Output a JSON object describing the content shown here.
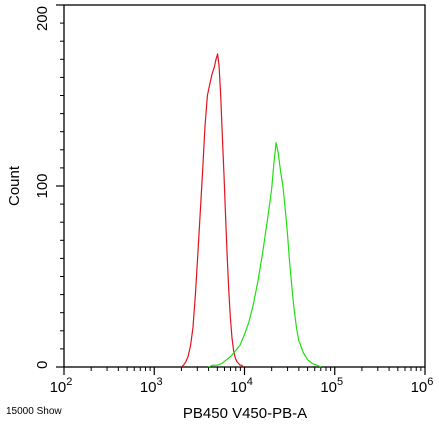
{
  "chart_data": {
    "type": "line",
    "title": "",
    "xlabel": "PB450 V450-PB-A",
    "ylabel": "Count",
    "x_scale": "log",
    "xlim": [
      100,
      1000000
    ],
    "ylim": [
      0,
      200
    ],
    "x_ticks": [
      {
        "value": 100,
        "base": "10",
        "exp": "2"
      },
      {
        "value": 1000,
        "base": "10",
        "exp": "3"
      },
      {
        "value": 10000,
        "base": "10",
        "exp": "4"
      },
      {
        "value": 100000,
        "base": "10",
        "exp": "5"
      },
      {
        "value": 1000000,
        "base": "10",
        "exp": "6"
      }
    ],
    "y_ticks": [
      {
        "value": 0,
        "label": "0"
      },
      {
        "value": 100,
        "label": "100"
      },
      {
        "value": 200,
        "label": "200"
      }
    ],
    "grid": false,
    "legend": "none",
    "footnote": "15000 Show",
    "series": [
      {
        "color": "#e0141e",
        "x": [
          1995,
          2110,
          2240,
          2380,
          2530,
          2690,
          2860,
          3040,
          3230,
          3430,
          3650,
          3880,
          4120,
          4380,
          4650,
          4830,
          5030,
          5230,
          5450,
          5680,
          5920,
          6170,
          6430,
          6700,
          6980,
          7270,
          7580,
          7900,
          8230,
          8580,
          8940,
          9320,
          9720
        ],
        "y": [
          0,
          1,
          3,
          6,
          12,
          22,
          40,
          62,
          85,
          108,
          133,
          150,
          156,
          162,
          166,
          170,
          173,
          166,
          150,
          128,
          106,
          83,
          61,
          42,
          27,
          16,
          9,
          5,
          3,
          2,
          1,
          1,
          0
        ]
      },
      {
        "color": "#22dd11",
        "x": [
          3980,
          4470,
          5010,
          5620,
          6310,
          7080,
          7940,
          8910,
          10000,
          11220,
          12590,
          14130,
          15850,
          17780,
          19950,
          21130,
          22390,
          23710,
          25120,
          26610,
          28180,
          29850,
          31620,
          33500,
          35480,
          37580,
          39810,
          44670,
          50120,
          56230,
          63100,
          70790
        ],
        "y": [
          0,
          1,
          1,
          2,
          4,
          6,
          9,
          12,
          18,
          25,
          35,
          48,
          63,
          80,
          98,
          112,
          124,
          118,
          108,
          100,
          88,
          74,
          58,
          44,
          32,
          22,
          15,
          8,
          4,
          2,
          1,
          0
        ]
      }
    ]
  }
}
